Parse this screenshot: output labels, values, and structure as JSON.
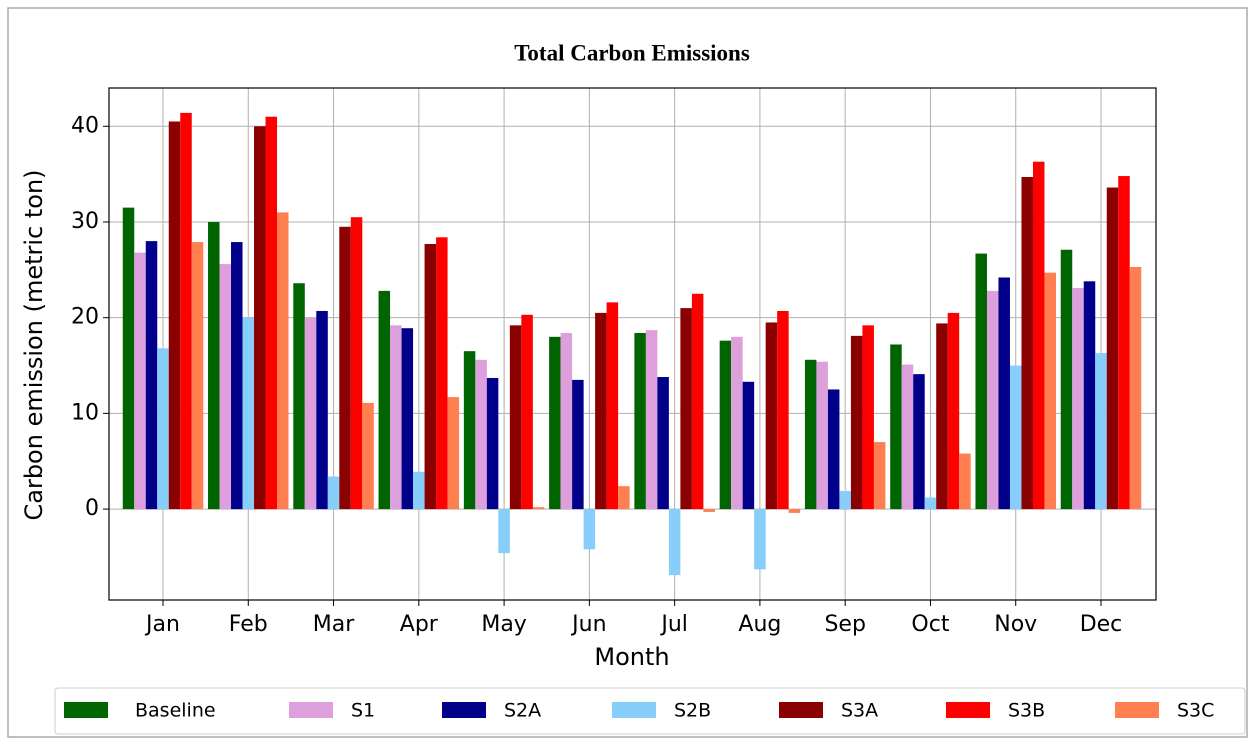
{
  "chart_data": {
    "type": "bar",
    "title": "Total Carbon Emissions",
    "x_label": "Month",
    "y_label": "Carbon emission (metric ton)",
    "categories": [
      "Jan",
      "Feb",
      "Mar",
      "Apr",
      "May",
      "Jun",
      "Jul",
      "Aug",
      "Sep",
      "Oct",
      "Nov",
      "Dec"
    ],
    "series": [
      {
        "name": "Baseline",
        "color": "#006400",
        "values": [
          31.5,
          30.0,
          23.6,
          22.8,
          16.5,
          18.0,
          18.4,
          17.6,
          15.6,
          17.2,
          26.7,
          27.1
        ]
      },
      {
        "name": "S1",
        "color": "#dda0dd",
        "values": [
          26.8,
          25.6,
          20.0,
          19.2,
          15.6,
          18.4,
          18.7,
          18.0,
          15.4,
          15.1,
          22.8,
          23.1
        ]
      },
      {
        "name": "S2A",
        "color": "#00008b",
        "values": [
          28.0,
          27.9,
          20.7,
          18.9,
          13.7,
          13.5,
          13.8,
          13.3,
          12.5,
          14.1,
          24.2,
          23.8
        ]
      },
      {
        "name": "S2B",
        "color": "#87cefa",
        "values": [
          16.8,
          20.0,
          3.4,
          3.9,
          -4.6,
          -4.2,
          -6.9,
          -6.3,
          1.9,
          1.2,
          15.0,
          16.3
        ]
      },
      {
        "name": "S3A",
        "color": "#8b0000",
        "values": [
          40.5,
          40.0,
          29.5,
          27.7,
          19.2,
          20.5,
          21.0,
          19.5,
          18.1,
          19.4,
          34.7,
          33.6
        ]
      },
      {
        "name": "S3B",
        "color": "#ff0000",
        "values": [
          41.4,
          41.0,
          30.5,
          28.4,
          20.3,
          21.6,
          22.5,
          20.7,
          19.2,
          20.5,
          36.3,
          34.8
        ]
      },
      {
        "name": "S3C",
        "color": "#ff7f50",
        "values": [
          27.9,
          31.0,
          11.1,
          11.7,
          0.2,
          2.4,
          -0.3,
          -0.4,
          7.0,
          5.8,
          24.7,
          25.3
        ]
      }
    ],
    "ylim": [
      -9.5,
      44
    ],
    "yticks": [
      0,
      10,
      20,
      30,
      40
    ],
    "grid": true,
    "legend": "bottom"
  }
}
